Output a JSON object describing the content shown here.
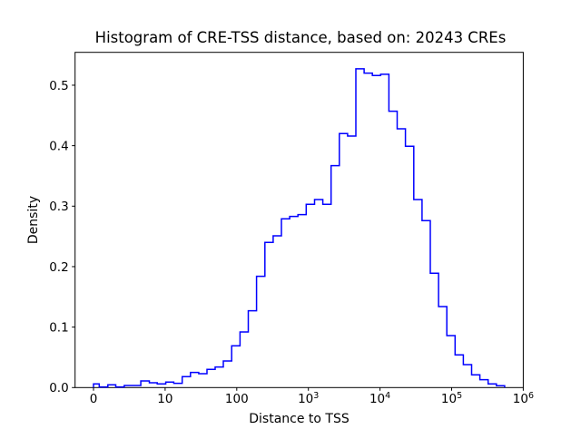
{
  "chart_data": {
    "type": "histogram",
    "title": "Histogram of CRE-TSS distance, based on: 20243 CREs",
    "xlabel": "Distance to TSS",
    "ylabel": "Density",
    "n_cres": 20243,
    "xscale": "symlog",
    "linthresh": 10,
    "xlim": [
      -2.5,
      1000000
    ],
    "ylim": [
      0.0,
      0.554
    ],
    "grid": false,
    "legend": "none",
    "line_color": "#0000ff",
    "xticks": [
      {
        "value": 0,
        "label": "0"
      },
      {
        "value": 10,
        "label": "10"
      },
      {
        "value": 100,
        "label": "100"
      },
      {
        "value": 1000,
        "label": "10^3"
      },
      {
        "value": 10000,
        "label": "10^4"
      },
      {
        "value": 100000,
        "label": "10^5"
      },
      {
        "value": 1000000,
        "label": "10^6"
      }
    ],
    "yticks": [
      {
        "value": 0.0,
        "label": "0.0"
      },
      {
        "value": 0.1,
        "label": "0.1"
      },
      {
        "value": 0.2,
        "label": "0.2"
      },
      {
        "value": 0.3,
        "label": "0.3"
      },
      {
        "value": 0.4,
        "label": "0.4"
      },
      {
        "value": 0.5,
        "label": "0.5"
      }
    ],
    "bin_edges": [
      0,
      0.8,
      2.0,
      3.1,
      4.3,
      5.4,
      6.6,
      7.8,
      8.9,
      10.2,
      13.2,
      17.3,
      22.6,
      29.4,
      38.4,
      50,
      65,
      85,
      111,
      145,
      189,
      247,
      322,
      420,
      548,
      715,
      933,
      1219,
      1589,
      2073,
      2704,
      3527,
      4601,
      6001,
      7829,
      10213,
      13322,
      17378,
      22669,
      29570,
      38574,
      50318,
      65638,
      85625,
      111700,
      145700,
      190000,
      247900,
      323400,
      421800,
      550300
    ],
    "densities": [
      0.006,
      0.001,
      0.0045,
      0.001,
      0.0035,
      0.0035,
      0.011,
      0.008,
      0.006,
      0.009,
      0.007,
      0.018,
      0.025,
      0.023,
      0.03,
      0.034,
      0.044,
      0.069,
      0.092,
      0.127,
      0.184,
      0.24,
      0.251,
      0.279,
      0.283,
      0.286,
      0.303,
      0.311,
      0.303,
      0.367,
      0.42,
      0.416,
      0.527,
      0.52,
      0.516,
      0.518,
      0.457,
      0.428,
      0.399,
      0.311,
      0.276,
      0.189,
      0.134,
      0.086,
      0.054,
      0.038,
      0.021,
      0.013,
      0.006,
      0.003
    ]
  }
}
